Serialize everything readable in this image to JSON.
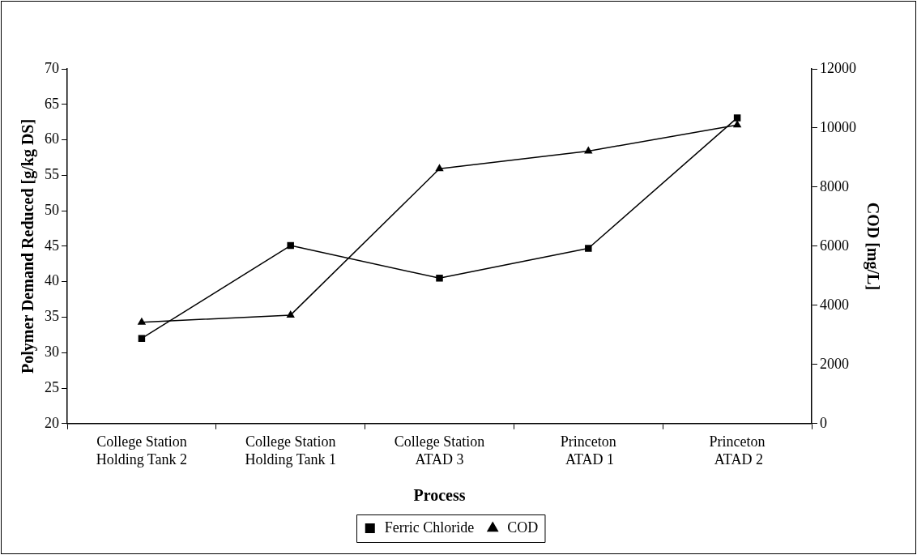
{
  "chart_data": {
    "type": "line",
    "xlabel": "Process",
    "ylabel": "Polymer Demand Reduced [g/kg DS]",
    "y2label": "COD [mg/L]",
    "categories": [
      "College Station\nHolding Tank 2",
      "College Station\nHolding Tank 1",
      "College Station\nATAD 3",
      "Princeton\n ATAD 1",
      "Princeton\n ATAD 2"
    ],
    "series": [
      {
        "name": "Ferric Chloride",
        "color": "#000000",
        "marker": "square",
        "values": [
          32,
          45.1,
          40.5,
          44.7,
          63.1
        ]
      },
      {
        "name": "COD",
        "color": "#000000",
        "marker": "triangle",
        "axis": "y2",
        "values": [
          3430,
          3670,
          8620,
          9220,
          10100
        ]
      }
    ],
    "ylim": [
      20,
      70
    ],
    "yticks": [
      20,
      25,
      30,
      35,
      40,
      45,
      50,
      55,
      60,
      65,
      70
    ],
    "y2lim": [
      0,
      12000
    ],
    "y2ticks": [
      0,
      2000,
      4000,
      6000,
      8000,
      10000,
      12000
    ],
    "grid": false,
    "legend": "bottom",
    "line_style": "solid"
  }
}
